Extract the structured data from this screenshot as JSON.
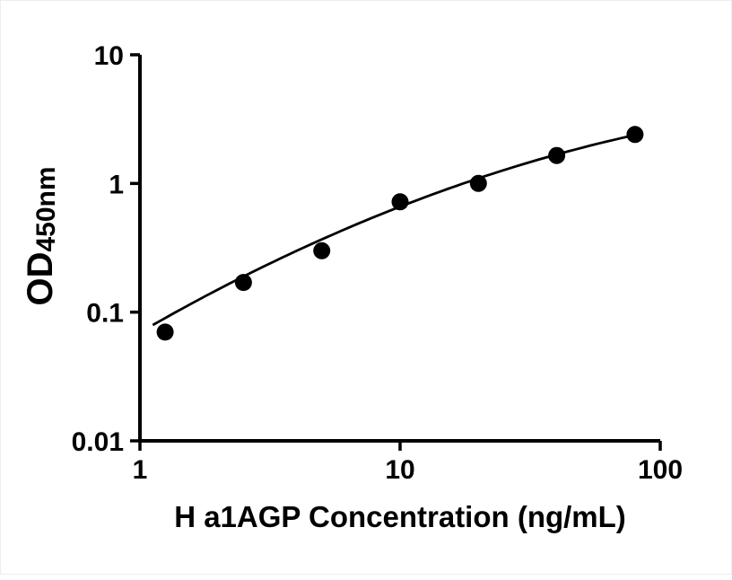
{
  "chart_data": {
    "type": "scatter",
    "title": "",
    "xlabel": "H a1AGP Concentration (ng/mL)",
    "ylabel_main": "OD",
    "ylabel_sub": "450nm",
    "x_scale": "log10",
    "y_scale": "log10",
    "xlim": [
      1,
      100
    ],
    "ylim": [
      0.01,
      10
    ],
    "grid": false,
    "legend": null,
    "x_ticks": [
      {
        "value": 1,
        "label": "1"
      },
      {
        "value": 10,
        "label": "10"
      },
      {
        "value": 100,
        "label": "100"
      }
    ],
    "y_ticks": [
      {
        "value": 10,
        "label": "10"
      },
      {
        "value": 1,
        "label": "1"
      },
      {
        "value": 0.1,
        "label": "0.1"
      },
      {
        "value": 0.01,
        "label": "0.01"
      }
    ],
    "points": {
      "x": [
        1.25,
        2.5,
        5,
        10,
        20,
        40,
        80
      ],
      "y": [
        0.07,
        0.17,
        0.3,
        0.72,
        1.0,
        1.65,
        2.4
      ]
    },
    "fit": {
      "type": "quadratic_in_loglog",
      "a": -1.157,
      "b": 1.1654,
      "c": -0.1889,
      "x_range": [
        1.12,
        81
      ]
    },
    "colors": {
      "axis": "#000000",
      "marker": "#000000",
      "curve": "#000000",
      "background": "#ffffff"
    }
  }
}
